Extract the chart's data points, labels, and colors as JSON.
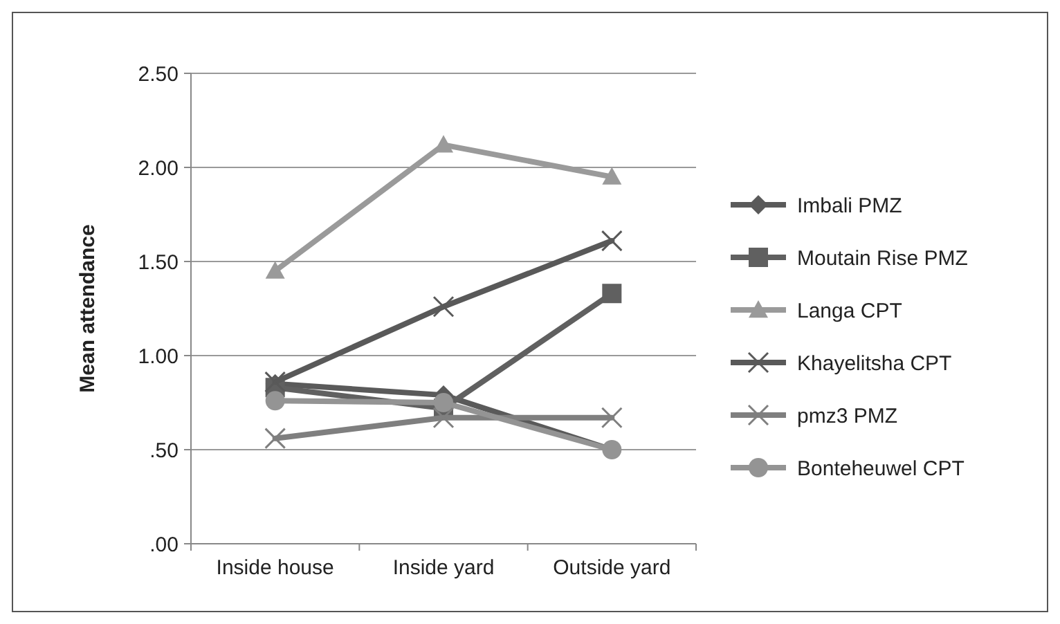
{
  "chart_data": {
    "type": "line",
    "ylabel": "Mean attendance",
    "categories": [
      "Inside house",
      "Inside yard",
      "Outside yard"
    ],
    "ylim": [
      0,
      2.5
    ],
    "yticks": [
      {
        "value": 0,
        "label": ".00"
      },
      {
        "value": 0.5,
        "label": ".50"
      },
      {
        "value": 1,
        "label": "1.00"
      },
      {
        "value": 1.5,
        "label": "1.50"
      },
      {
        "value": 2,
        "label": "2.00"
      },
      {
        "value": 2.5,
        "label": "2.50"
      }
    ],
    "grid": "y",
    "legend": "right",
    "series": [
      {
        "name": "Imbali PMZ",
        "color": "#5a5a5a",
        "marker": "diamond",
        "values": [
          0.85,
          0.79,
          0.5
        ]
      },
      {
        "name": "Moutain Rise PMZ",
        "color": "#606060",
        "marker": "square",
        "values": [
          0.83,
          0.72,
          1.33
        ]
      },
      {
        "name": "Langa CPT",
        "color": "#9a9a9a",
        "marker": "triangle",
        "values": [
          1.45,
          2.12,
          1.95
        ]
      },
      {
        "name": "Khayelitsha CPT",
        "color": "#595959",
        "marker": "cross",
        "values": [
          0.86,
          1.26,
          1.61
        ]
      },
      {
        "name": "pmz3 PMZ",
        "color": "#7f7f7f",
        "marker": "cross",
        "values": [
          0.56,
          0.67,
          0.67
        ]
      },
      {
        "name": "Bonteheuwel CPT",
        "color": "#949494",
        "marker": "circle",
        "values": [
          0.76,
          0.75,
          0.5
        ]
      }
    ]
  }
}
